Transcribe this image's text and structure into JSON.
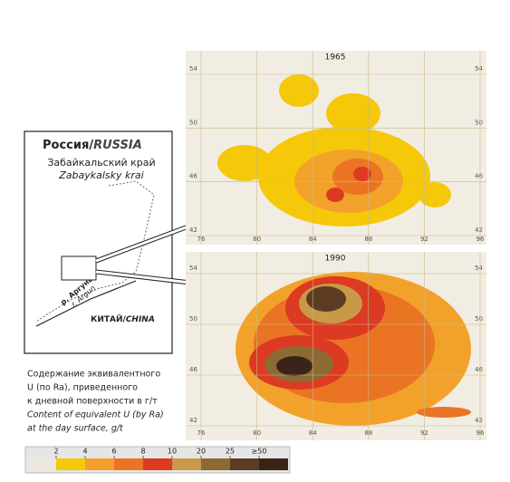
{
  "inset": {
    "country": "Россия/",
    "country_en": "RUSSIA",
    "region": "Забайкальский край",
    "region_en": "Zabaykalsky krai",
    "river": "р. Аргунь",
    "river_en": "r. Argun",
    "neighbor": "КИТАЙ/",
    "neighbor_en": "CHINA"
  },
  "maps": [
    {
      "title": "1965",
      "yticks": [
        54,
        50,
        46,
        42
      ],
      "xticks": [
        76,
        80,
        84,
        88,
        92,
        96
      ]
    },
    {
      "title": "1990",
      "yticks": [
        54,
        50,
        46,
        42
      ],
      "xticks": [
        76,
        80,
        84,
        88,
        92,
        96
      ]
    }
  ],
  "legend": {
    "lines": [
      "Содержание эквивалентного",
      "U (по Ra), приведенного",
      "к дневной поверхности в г/т",
      "Content of equivalent U (by Ra)",
      "at the day surface, g/t"
    ],
    "ticks": [
      2,
      4,
      6,
      8,
      10,
      20,
      25,
      {
        "value": 50,
        "label": "≥50"
      }
    ],
    "colors": [
      "#ece8e0",
      "#f6c80a",
      "#f2a22a",
      "#ea7424",
      "#dc3a22",
      "#c89a48",
      "#8c6a34",
      "#5c3c22",
      "#3a2318"
    ]
  }
}
